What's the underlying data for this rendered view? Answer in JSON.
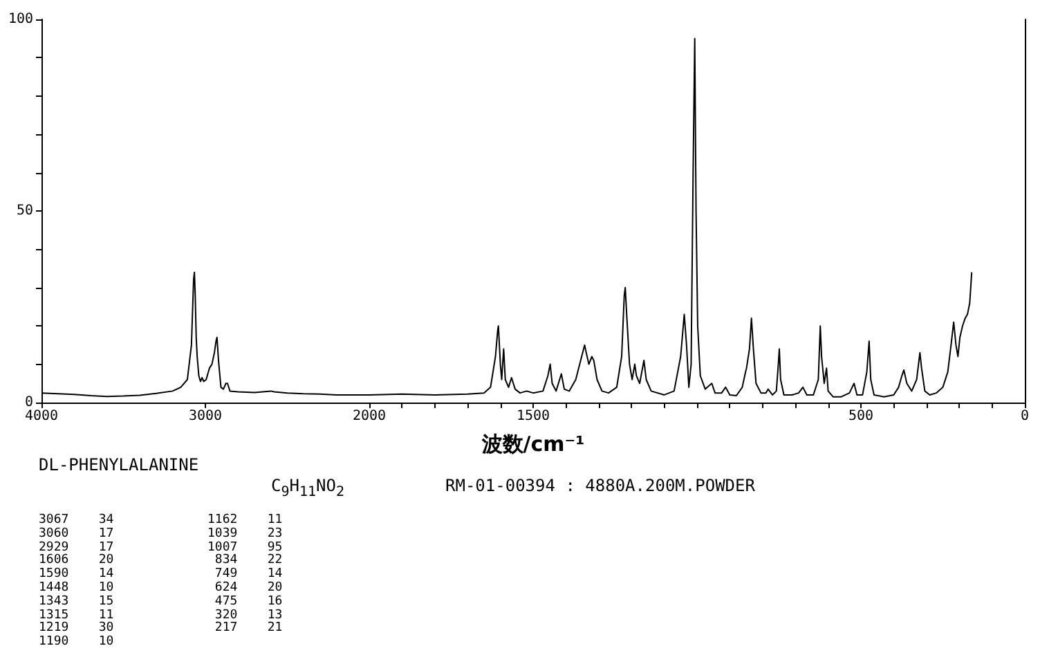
{
  "chart_data": [
    {
      "type": "line",
      "title": "DL-PHENYLALANINE",
      "subtitle": "C$_{9}$H$_{11}$NO$_{2}$",
      "annotations": [
        "RM-01-00394 : 4880A.200M.POWDER",
        "3067    34",
        "3060    17",
        "2929    17",
        "1606    20",
        "1590    14",
        "1448    10",
        "1343    15",
        "1315    11",
        "1219    30",
        "1190    10",
        "1162    11",
        "1039    23",
        "1007    95",
        " 834    22",
        " 749    14",
        " 624    20",
        " 475    16",
        " 320    13",
        " 217    21"
      ],
      "color": "#000000",
      "x": [
        4000,
        3900,
        3800,
        3700,
        3600,
        3500,
        3400,
        3300,
        3200,
        3150,
        3110,
        3085,
        3072,
        3067,
        3062,
        3056,
        3050,
        3040,
        3030,
        3020,
        3010,
        2995,
        2975,
        2960,
        2945,
        2935,
        2929,
        2920,
        2905,
        2890,
        2875,
        2865,
        2850,
        2800,
        2700,
        2600,
        2580,
        2500,
        2400,
        2300,
        2200,
        2100,
        2000
      ],
      "values": [
        2.5,
        2.3,
        2.1,
        1.8,
        1.6,
        1.7,
        1.9,
        2.4,
        3,
        4,
        6,
        15,
        32,
        34,
        28,
        17,
        12,
        7,
        5.5,
        6.5,
        5.5,
        6,
        9,
        10,
        13,
        16,
        17,
        11,
        4,
        3.5,
        5,
        5,
        3,
        2.8,
        2.6,
        3,
        2.8,
        2.5,
        2.3,
        2.2,
        2,
        2,
        2
      ],
      "xlim": [
        4000,
        2000
      ],
      "ylim": [
        0,
        100
      ],
      "xticks": [
        4000,
        3000,
        2000
      ],
      "yticks": [
        0,
        {
          "value": 10,
          "label": null
        },
        {
          "value": 20,
          "label": null
        },
        {
          "value": 30,
          "label": null
        },
        {
          "value": 40,
          "label": null
        },
        50,
        {
          "value": 60,
          "label": null
        },
        {
          "value": 70,
          "label": null
        },
        {
          "value": 80,
          "label": null
        },
        {
          "value": 90,
          "label": null
        },
        100
      ]
    },
    {
      "type": "line",
      "xlabel": "波数/cm⁻¹",
      "color": "#000000",
      "tick_labels": "x",
      "x": [
        2000,
        1900,
        1800,
        1700,
        1650,
        1630,
        1615,
        1608,
        1606,
        1600,
        1596,
        1590,
        1585,
        1575,
        1566,
        1555,
        1540,
        1520,
        1500,
        1470,
        1455,
        1448,
        1442,
        1430,
        1414,
        1405,
        1390,
        1370,
        1355,
        1343,
        1338,
        1330,
        1321,
        1315,
        1305,
        1290,
        1270,
        1245,
        1230,
        1222,
        1219,
        1214,
        1206,
        1198,
        1190,
        1185,
        1175,
        1162,
        1155,
        1140,
        1100,
        1070,
        1050,
        1039,
        1032,
        1025,
        1018,
        1012,
        1007,
        1003,
        998,
        990,
        975,
        955,
        945,
        925,
        913,
        900,
        880,
        862,
        852,
        849,
        840,
        834,
        828,
        820,
        805,
        790,
        783,
        770,
        758,
        752,
        749,
        745,
        735,
        710,
        690,
        677,
        665,
        645,
        630,
        624,
        620,
        612,
        605,
        600,
        585,
        560,
        535,
        521,
        512,
        495,
        482,
        475,
        470,
        460,
        430,
        400,
        385,
        375,
        369,
        360,
        345,
        330,
        320,
        315,
        305,
        290,
        270,
        250,
        235,
        225,
        217,
        210,
        204,
        198,
        190,
        182,
        175,
        168,
        162
      ],
      "values": [
        2,
        2.2,
        2,
        2.2,
        2.5,
        4,
        12,
        19,
        20,
        10,
        6,
        14,
        6,
        4,
        6.5,
        3.5,
        2.5,
        3,
        2.5,
        3,
        7,
        10,
        5,
        3,
        7.5,
        3.5,
        3,
        6,
        11,
        15,
        13,
        10,
        12,
        11,
        6,
        3,
        2.5,
        4,
        12,
        28,
        30,
        22,
        10,
        6,
        10,
        7,
        5,
        11,
        6,
        3,
        2,
        3,
        12,
        23,
        15,
        4,
        10,
        60,
        95,
        50,
        20,
        7,
        3.5,
        5,
        2.5,
        2.5,
        4,
        2,
        1.8,
        4,
        8,
        9,
        14,
        22,
        14,
        5,
        2.5,
        2.5,
        3.5,
        2,
        3,
        10,
        14,
        6,
        2,
        2,
        2.5,
        4,
        2,
        2,
        6,
        20,
        12,
        5,
        9,
        3,
        1.5,
        1.5,
        2.5,
        5,
        2,
        2,
        8,
        16,
        6,
        2,
        1.5,
        2,
        4,
        7,
        8.5,
        5,
        3,
        6,
        13,
        9,
        3,
        2,
        2.5,
        4,
        8,
        15,
        21,
        15,
        12,
        17,
        20,
        22,
        23,
        26,
        34
      ],
      "xlim": [
        2000,
        0
      ],
      "ylim": [
        0,
        100
      ],
      "xticks": [
        {
          "value": 2000,
          "label": null
        },
        {
          "value": 1900,
          "label": null
        },
        {
          "value": 1800,
          "label": null
        },
        {
          "value": 1700,
          "label": null
        },
        {
          "value": 1600,
          "label": null
        },
        1500,
        {
          "value": 1400,
          "label": null
        },
        {
          "value": 1300,
          "label": null
        },
        {
          "value": 1200,
          "label": null
        },
        {
          "value": 1100,
          "label": null
        },
        {
          "value": 1000,
          "label": null
        },
        {
          "value": 900,
          "label": null
        },
        {
          "value": 800,
          "label": null
        },
        {
          "value": 700,
          "label": null
        },
        {
          "value": 600,
          "label": null
        },
        500,
        {
          "value": 400,
          "label": null
        },
        {
          "value": 300,
          "label": null
        },
        {
          "value": 200,
          "label": null
        },
        {
          "value": 100,
          "label": null
        },
        0
      ]
    }
  ]
}
